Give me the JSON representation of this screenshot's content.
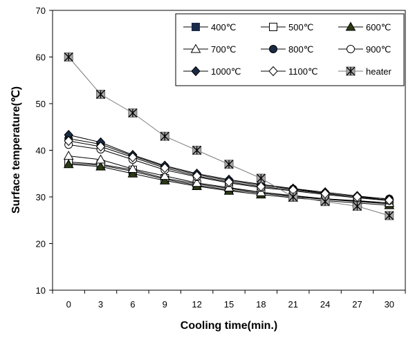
{
  "chart_data": {
    "type": "line",
    "xlabel": "Cooling time(min.)",
    "ylabel": "Surface temperature(℃)",
    "x": [
      0,
      3,
      6,
      9,
      12,
      15,
      18,
      21,
      24,
      27,
      30
    ],
    "x_ticks": [
      "0",
      "3",
      "6",
      "9",
      "12",
      "15",
      "18",
      "21",
      "24",
      "27",
      "30"
    ],
    "ylim": [
      10,
      70
    ],
    "y_ticks": [
      "10",
      "20",
      "30",
      "40",
      "50",
      "60",
      "70"
    ],
    "grid": false,
    "legend": "top-right",
    "series": [
      {
        "name": "400℃",
        "marker": "square-filled",
        "values": [
          37.2,
          36.8,
          35.5,
          33.8,
          32.5,
          31.5,
          30.8,
          30.0,
          29.5,
          29.0,
          28.5
        ]
      },
      {
        "name": "500℃",
        "marker": "square-open",
        "values": [
          37.5,
          37.0,
          35.8,
          34.0,
          32.8,
          31.8,
          31.0,
          30.2,
          29.6,
          29.1,
          28.7
        ]
      },
      {
        "name": "600℃",
        "marker": "triangle-filled",
        "values": [
          37.0,
          36.5,
          35.0,
          33.5,
          32.3,
          31.3,
          30.5,
          29.8,
          29.2,
          28.7,
          28.2
        ]
      },
      {
        "name": "700℃",
        "marker": "triangle-open",
        "values": [
          38.8,
          38.0,
          36.0,
          34.5,
          33.0,
          32.0,
          31.0,
          30.3,
          29.6,
          29.2,
          28.7
        ]
      },
      {
        "name": "800℃",
        "marker": "circle-filled",
        "values": [
          42.5,
          41.3,
          38.8,
          36.5,
          34.8,
          33.5,
          32.5,
          31.7,
          30.8,
          30.0,
          29.6
        ]
      },
      {
        "name": "900℃",
        "marker": "circle-open",
        "values": [
          41.2,
          40.2,
          38.0,
          35.8,
          34.3,
          33.0,
          32.0,
          31.3,
          30.5,
          29.8,
          29.2
        ]
      },
      {
        "name": "1000℃",
        "marker": "diamond-filled",
        "values": [
          43.3,
          41.7,
          39.0,
          36.7,
          35.0,
          33.7,
          32.7,
          31.8,
          31.0,
          30.2,
          29.5
        ]
      },
      {
        "name": "1100℃",
        "marker": "diamond-open",
        "values": [
          42.0,
          40.8,
          38.5,
          36.2,
          34.5,
          33.2,
          32.2,
          31.5,
          30.7,
          30.0,
          29.3
        ]
      },
      {
        "name": "heater",
        "marker": "star",
        "values": [
          60.0,
          52.0,
          48.0,
          43.0,
          40.0,
          37.0,
          34.0,
          30.0,
          29.0,
          28.0,
          26.0
        ]
      }
    ]
  }
}
